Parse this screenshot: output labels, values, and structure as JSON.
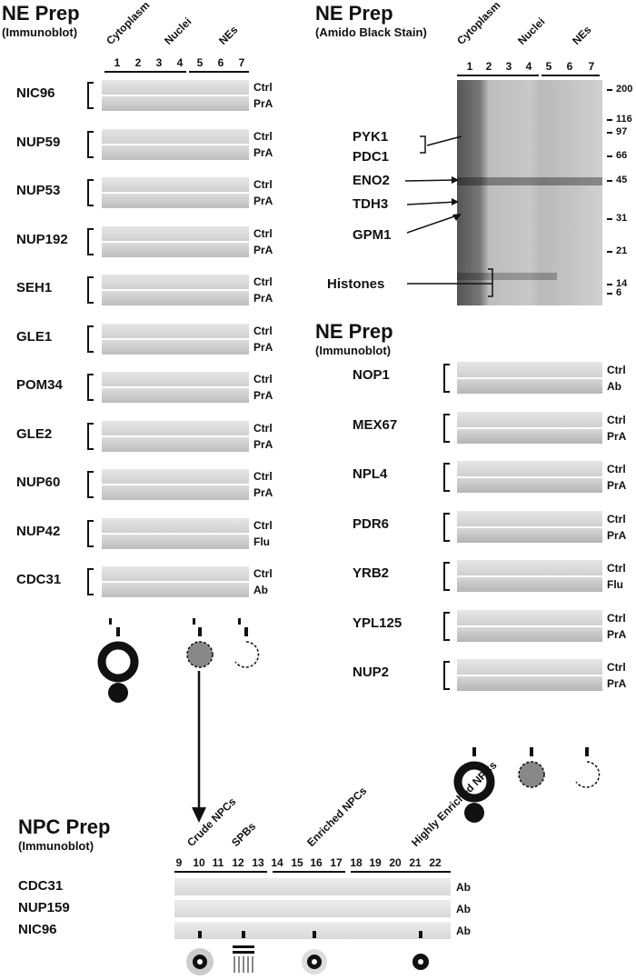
{
  "left_panel": {
    "title": "NE Prep",
    "subtitle": "(Immunoblot)",
    "fractions": [
      "Cytoplasm",
      "Nuclei",
      "NEs"
    ],
    "lanes": [
      "1",
      "2",
      "3",
      "4",
      "5",
      "6",
      "7"
    ],
    "rows": [
      {
        "name": "NIC96",
        "top": "Ctrl",
        "bottom": "PrA"
      },
      {
        "name": "NUP59",
        "top": "Ctrl",
        "bottom": "PrA"
      },
      {
        "name": "NUP53",
        "top": "Ctrl",
        "bottom": "PrA"
      },
      {
        "name": "NUP192",
        "top": "Ctrl",
        "bottom": "PrA"
      },
      {
        "name": "SEH1",
        "top": "Ctrl",
        "bottom": "PrA"
      },
      {
        "name": "GLE1",
        "top": "Ctrl",
        "bottom": "PrA"
      },
      {
        "name": "POM34",
        "top": "Ctrl",
        "bottom": "PrA"
      },
      {
        "name": "GLE2",
        "top": "Ctrl",
        "bottom": "PrA"
      },
      {
        "name": "NUP60",
        "top": "Ctrl",
        "bottom": "PrA"
      },
      {
        "name": "NUP42",
        "top": "Ctrl",
        "bottom": "Flu"
      },
      {
        "name": "CDC31",
        "top": "Ctrl",
        "bottom": "Ab"
      }
    ]
  },
  "stain_panel": {
    "title": "NE Prep",
    "subtitle": "(Amido Black Stain)",
    "fractions": [
      "Cytoplasm",
      "Nuclei",
      "NEs"
    ],
    "lanes": [
      "1",
      "2",
      "3",
      "4",
      "5",
      "6",
      "7"
    ],
    "markers": [
      "200",
      "116",
      "97",
      "66",
      "45",
      "31",
      "21",
      "14",
      "6"
    ],
    "bands": [
      "PYK1",
      "PDC1",
      "ENO2",
      "TDH3",
      "GPM1",
      "Histones"
    ]
  },
  "right_panel": {
    "title": "NE Prep",
    "subtitle": "(Immunoblot)",
    "rows": [
      {
        "name": "NOP1",
        "top": "Ctrl",
        "bottom": "Ab"
      },
      {
        "name": "MEX67",
        "top": "Ctrl",
        "bottom": "PrA"
      },
      {
        "name": "NPL4",
        "top": "Ctrl",
        "bottom": "PrA"
      },
      {
        "name": "PDR6",
        "top": "Ctrl",
        "bottom": "PrA"
      },
      {
        "name": "YRB2",
        "top": "Ctrl",
        "bottom": "Flu"
      },
      {
        "name": "YPL125",
        "top": "Ctrl",
        "bottom": "PrA"
      },
      {
        "name": "NUP2",
        "top": "Ctrl",
        "bottom": "PrA"
      }
    ]
  },
  "npc_panel": {
    "title": "NPC Prep",
    "subtitle": "(Immunoblot)",
    "fractions": [
      "Crude NPCs",
      "SPBs",
      "Enriched NPCs",
      "Highly Enriched NPCs"
    ],
    "lanes": [
      "9",
      "10",
      "11",
      "12",
      "13",
      "14",
      "15",
      "16",
      "17",
      "18",
      "19",
      "20",
      "21",
      "22"
    ],
    "rows": [
      {
        "name": "CDC31",
        "label": "Ab"
      },
      {
        "name": "NUP159",
        "label": "Ab"
      },
      {
        "name": "NIC96",
        "label": "Ab"
      }
    ]
  }
}
